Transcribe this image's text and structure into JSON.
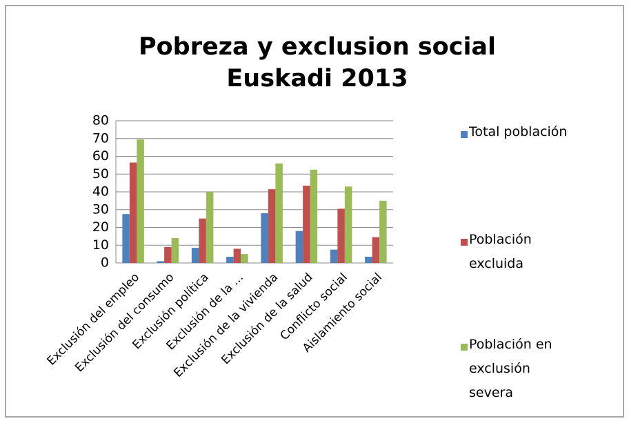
{
  "chart_data": {
    "type": "bar",
    "title": "Pobreza y exclusion social Euskadi 2013",
    "categories": [
      "Exclusión del empleo",
      "Exclusión del consumo",
      "Exclusión política",
      "Exclusión de la ...",
      "Exclusión de la vivienda",
      "Exclusión de la salud",
      "Conflicto social",
      "Aislamiento social"
    ],
    "series": [
      {
        "name": "Total población",
        "color": "#4f81bd",
        "values": [
          27.5,
          1,
          8.5,
          3.5,
          28,
          18,
          7.5,
          3.5
        ]
      },
      {
        "name": "Población excluida",
        "color": "#c0504d",
        "values": [
          56.5,
          9,
          25,
          8,
          41.5,
          43.5,
          30.5,
          14.5
        ]
      },
      {
        "name": "Población en exclusión severa",
        "color": "#9bbb59",
        "values": [
          69.5,
          14,
          40,
          5,
          56,
          52.5,
          43,
          35
        ]
      }
    ],
    "ylim": [
      0,
      80
    ],
    "yticks": [
      0,
      10,
      20,
      30,
      40,
      50,
      60,
      70,
      80
    ],
    "grid": true,
    "legend": "right"
  }
}
